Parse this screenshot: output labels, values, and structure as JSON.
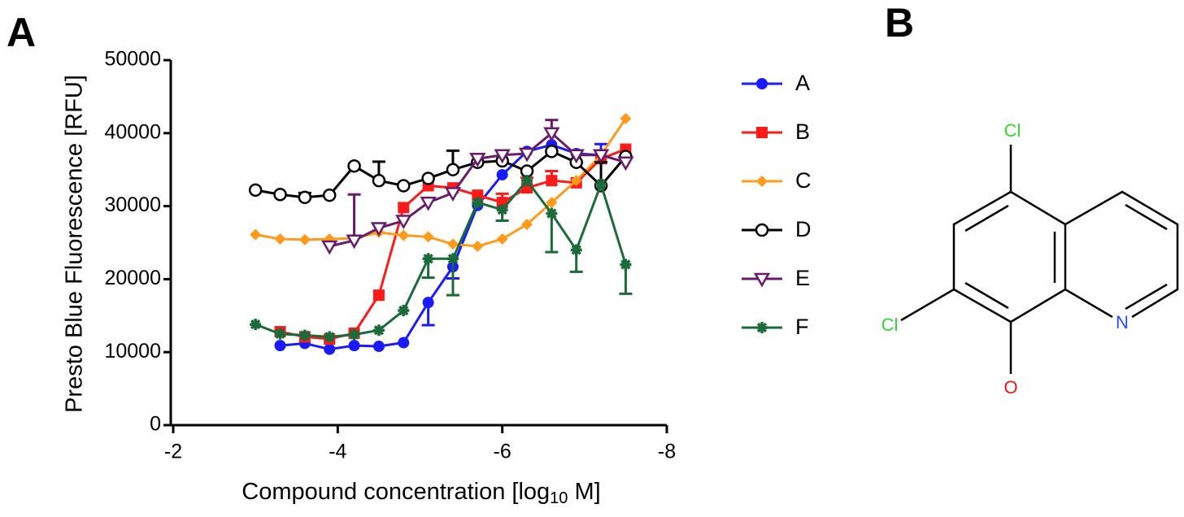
{
  "chart_data": {
    "type": "line",
    "panel_label": "A",
    "y_label": "Presto Blue Fluorescence [RFU]",
    "x_label": [
      "Compound concentration [log",
      "10",
      " M]"
    ],
    "xlim": [
      -2,
      -8
    ],
    "xticks": [
      -2,
      -4,
      -6,
      -8
    ],
    "ylim": [
      0,
      50000
    ],
    "yticks": [
      0,
      10000,
      20000,
      30000,
      40000,
      50000
    ],
    "series": [
      {
        "name": "A",
        "color": "#1a1aff",
        "marker": "circle",
        "x": [
          -3.3,
          -3.6,
          -3.9,
          -4.2,
          -4.5,
          -4.8,
          -5.1,
          -5.4,
          -5.7,
          -6.0,
          -6.3,
          -6.6,
          -6.9,
          -7.2
        ],
        "values": [
          10900,
          11200,
          10400,
          10900,
          10800,
          11300,
          16800,
          21700,
          30100,
          34300,
          37500,
          38400,
          37200,
          37000
        ],
        "errors": [
          null,
          null,
          null,
          null,
          null,
          null,
          3100,
          1600,
          null,
          null,
          null,
          null,
          null,
          1500
        ]
      },
      {
        "name": "B",
        "color": "#ff1a1a",
        "marker": "square",
        "x": [
          -3.3,
          -3.6,
          -3.9,
          -4.2,
          -4.5,
          -4.8,
          -5.1,
          -5.4,
          -5.7,
          -6.0,
          -6.3,
          -6.6,
          -6.9,
          -7.2,
          -7.5
        ],
        "values": [
          12800,
          12100,
          11800,
          12600,
          17800,
          29800,
          32800,
          32500,
          31500,
          30500,
          32500,
          33500,
          33200,
          36500,
          37800
        ],
        "errors": [
          null,
          null,
          null,
          null,
          null,
          null,
          null,
          null,
          null,
          1200,
          1400,
          1300,
          null,
          null,
          null
        ]
      },
      {
        "name": "C",
        "color": "#ff9a1a",
        "marker": "diamond",
        "x": [
          -3.0,
          -3.3,
          -3.6,
          -3.9,
          -4.2,
          -4.5,
          -4.8,
          -5.1,
          -5.4,
          -5.7,
          -6.0,
          -6.3,
          -6.6,
          -6.9,
          -7.2,
          -7.5
        ],
        "values": [
          26100,
          25500,
          25400,
          25500,
          25600,
          26400,
          26000,
          25800,
          24800,
          24500,
          25500,
          27500,
          30500,
          33500,
          37000,
          42000
        ],
        "errors": [
          null,
          null,
          null,
          null,
          null,
          null,
          null,
          null,
          null,
          null,
          null,
          null,
          null,
          null,
          null,
          null
        ]
      },
      {
        "name": "D",
        "color": "#000000",
        "marker": "open-circle",
        "x": [
          -3.0,
          -3.3,
          -3.6,
          -3.9,
          -4.2,
          -4.5,
          -4.8,
          -5.1,
          -5.4,
          -5.7,
          -6.0,
          -6.3,
          -6.6,
          -6.9,
          -7.2,
          -7.5
        ],
        "values": [
          32200,
          31600,
          31200,
          31500,
          35500,
          33500,
          32800,
          33800,
          35000,
          36000,
          36200,
          34800,
          37500,
          36000,
          32800,
          36800
        ],
        "errors": [
          null,
          null,
          600,
          null,
          null,
          2600,
          null,
          null,
          2600,
          null,
          null,
          null,
          null,
          null,
          3200,
          null
        ]
      },
      {
        "name": "E",
        "color": "#6a1a6a",
        "marker": "triangle-down",
        "x": [
          -3.9,
          -4.2,
          -4.5,
          -4.8,
          -5.1,
          -5.4,
          -5.7,
          -6.0,
          -6.3,
          -6.6,
          -6.9,
          -7.2,
          -7.5
        ],
        "values": [
          24500,
          25300,
          27000,
          28000,
          30500,
          31800,
          36500,
          37000,
          37200,
          40000,
          37000,
          37000,
          36000
        ],
        "errors": [
          null,
          6300,
          null,
          null,
          null,
          null,
          null,
          null,
          null,
          1800,
          null,
          null,
          null
        ]
      },
      {
        "name": "F",
        "color": "#1a6a3a",
        "marker": "star",
        "x": [
          -3.0,
          -3.3,
          -3.6,
          -3.9,
          -4.2,
          -4.5,
          -4.8,
          -5.1,
          -5.4,
          -5.7,
          -6.0,
          -6.3,
          -6.6,
          -6.9,
          -7.2,
          -7.5
        ],
        "values": [
          13800,
          12500,
          12300,
          12100,
          12400,
          13000,
          15700,
          22800,
          22800,
          30500,
          29500,
          33500,
          29000,
          24000,
          33000,
          22000
        ],
        "errors": [
          null,
          null,
          null,
          null,
          null,
          null,
          null,
          2600,
          5000,
          null,
          1500,
          null,
          5300,
          3000,
          null,
          4000
        ]
      }
    ]
  },
  "structure": {
    "label": "B",
    "atoms": [
      "Cl",
      "Cl",
      "N",
      "O"
    ]
  }
}
